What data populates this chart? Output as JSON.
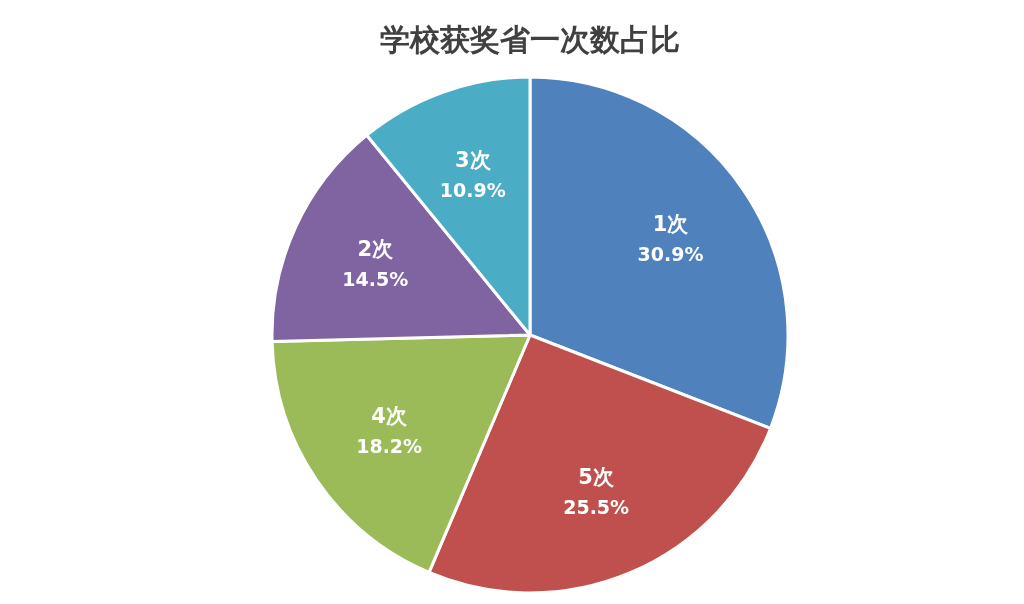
{
  "chart_data": {
    "type": "pie",
    "title": "学校获奖省一次数占比",
    "categories": [
      "1次",
      "5次",
      "4次",
      "2次",
      "3次"
    ],
    "values": [
      30.9,
      25.5,
      18.2,
      14.5,
      10.9
    ],
    "colors": [
      "#4f81bd",
      "#c0504d",
      "#9bbb59",
      "#8064a2",
      "#4bacc6"
    ],
    "value_labels": [
      "30.9%",
      "25.5%",
      "18.2%",
      "14.5%",
      "10.9%"
    ],
    "legend": false
  }
}
